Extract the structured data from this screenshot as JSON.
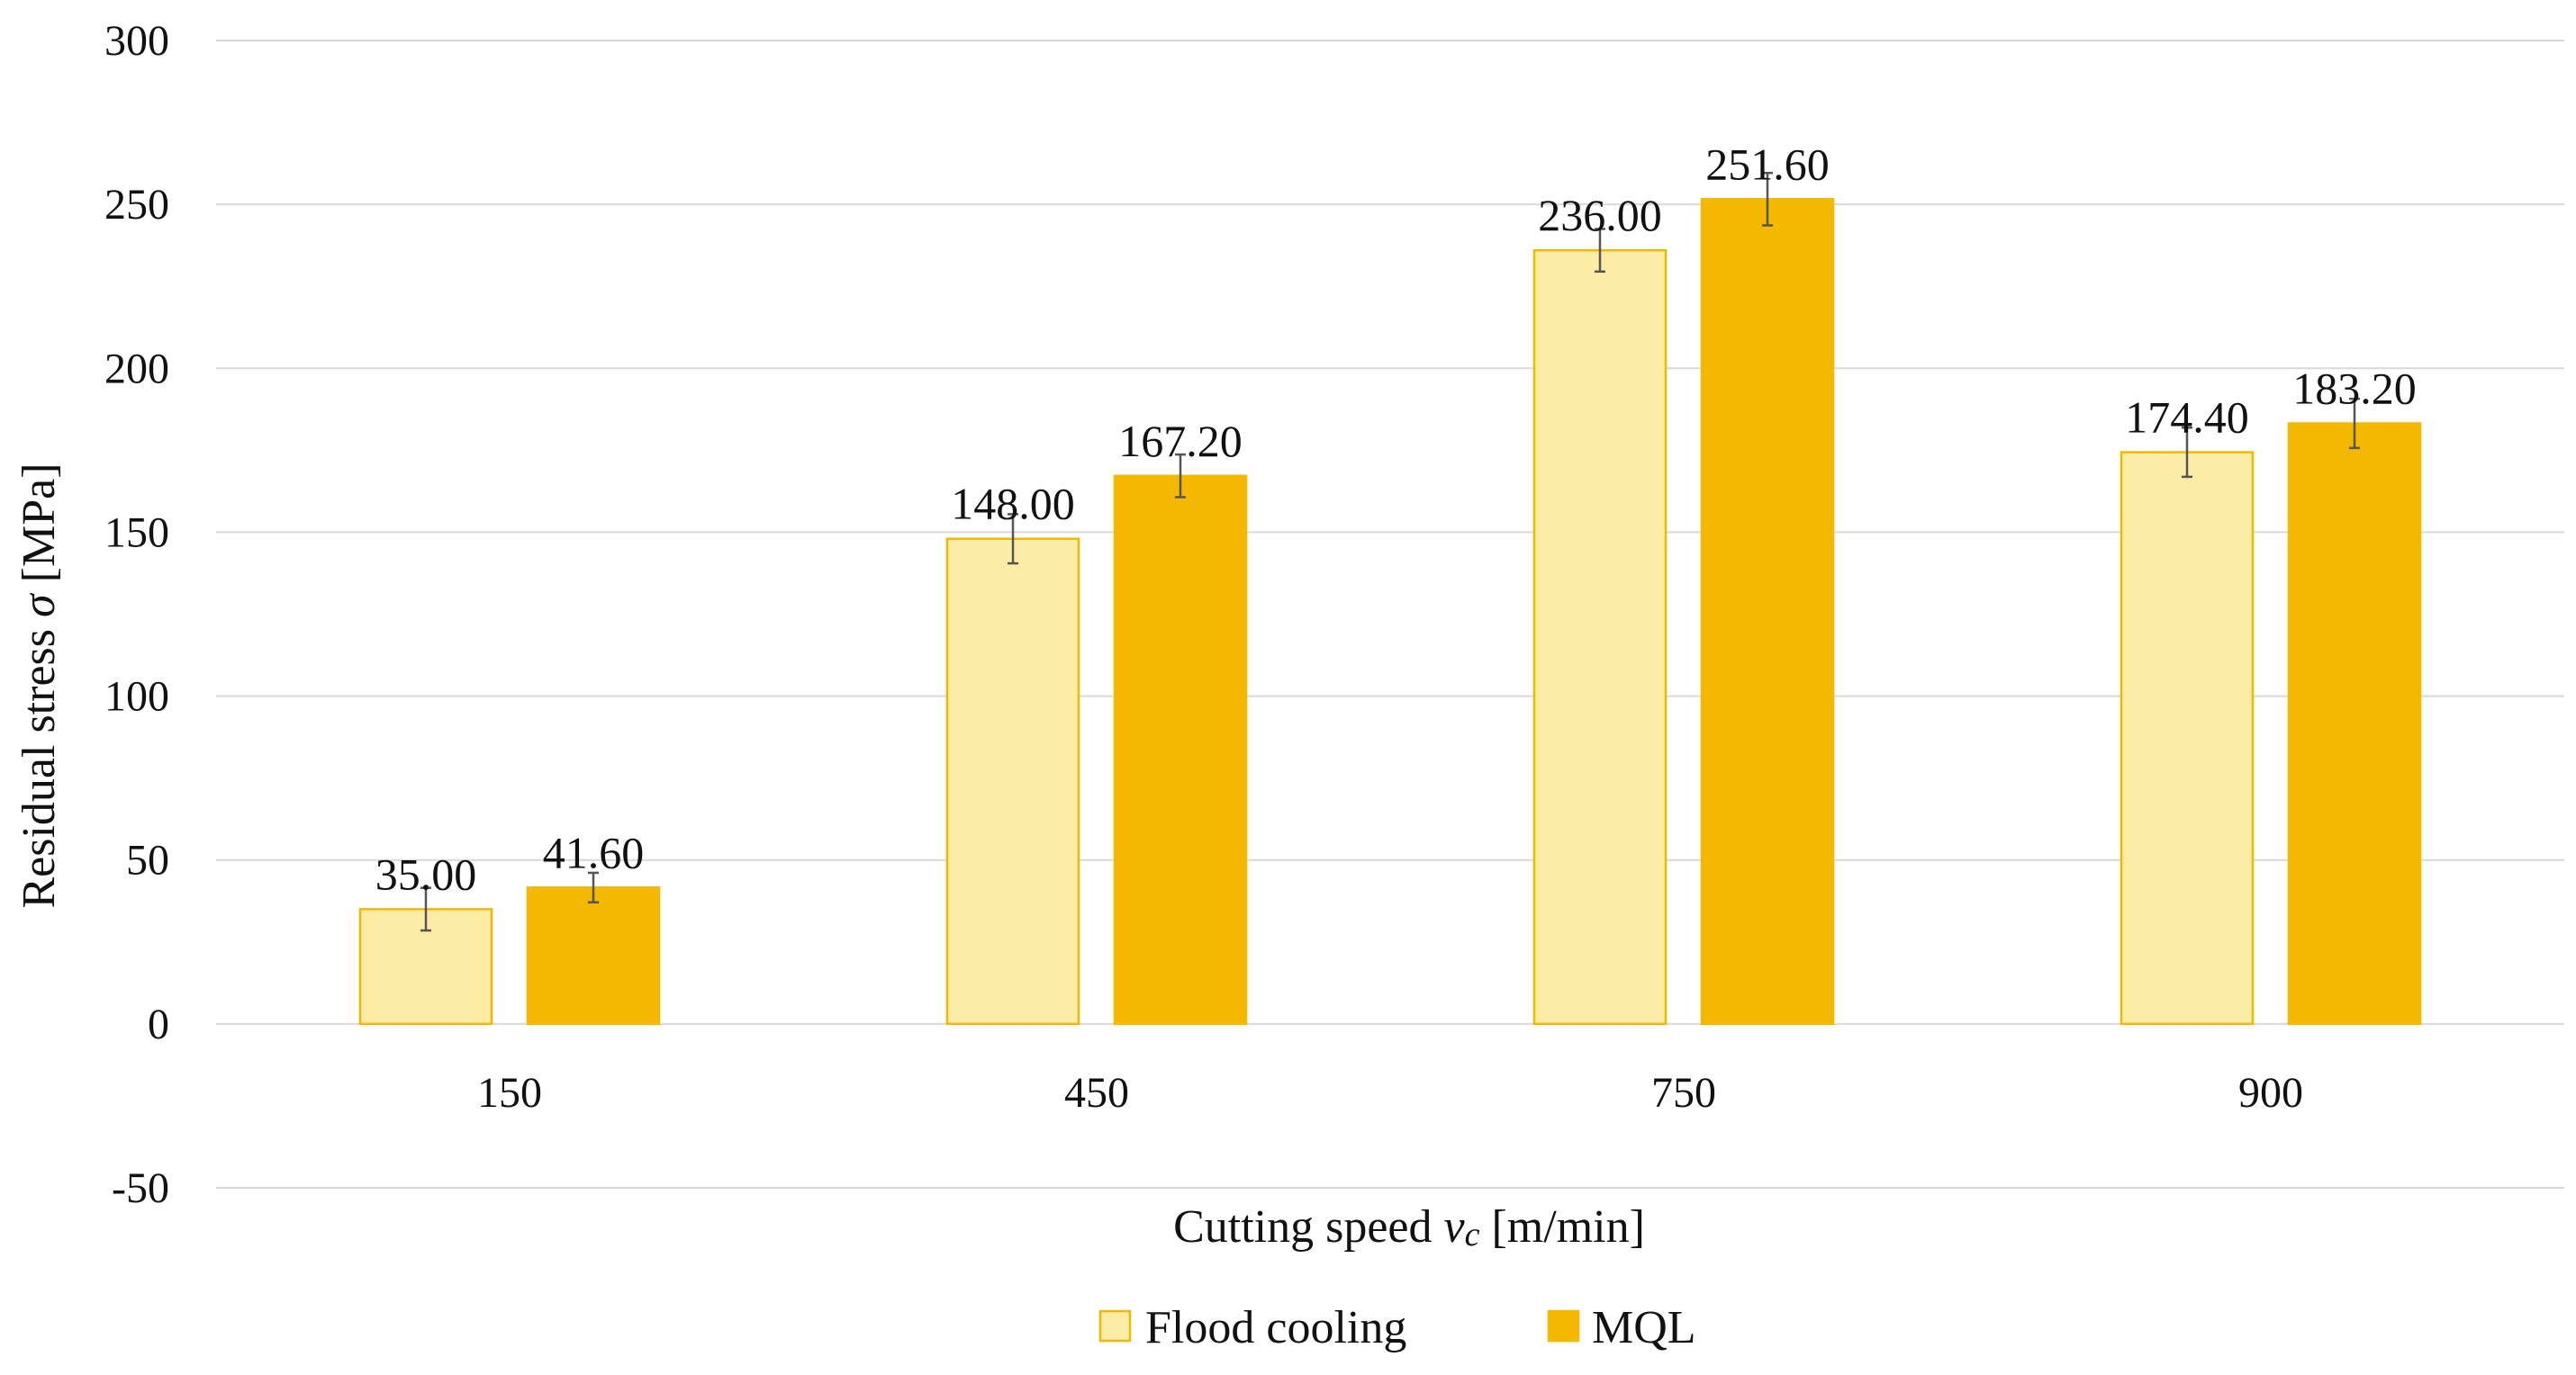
{
  "chart_data": {
    "type": "bar",
    "title": "",
    "xlabel": "Cutting speed vc [m/min]",
    "xlabel_main": "Cutting speed ",
    "xlabel_var": "v",
    "xlabel_sub": "c",
    "xlabel_unit": " [m/min]",
    "ylabel": "Residual stress σ [MPa]",
    "ylabel_main": "Residual stress ",
    "ylabel_var": "σ",
    "ylabel_unit": " [MPa]",
    "ylim": [
      -50,
      300
    ],
    "yticks": [
      -50,
      0,
      50,
      100,
      150,
      200,
      250,
      300
    ],
    "grid": true,
    "legend_position": "bottom-center",
    "categories": [
      "150",
      "450",
      "750",
      "900"
    ],
    "series": [
      {
        "name": "Flood cooling",
        "values": [
          35.0,
          148.0,
          236.0,
          174.4
        ],
        "labels": [
          "35.00",
          "148.00",
          "236.00",
          "174.40"
        ],
        "errors": [
          6.5,
          7.5,
          6.5,
          7.5
        ],
        "fill": "#fdeca6",
        "stroke": "#f2b800"
      },
      {
        "name": "MQL",
        "values": [
          41.6,
          167.2,
          251.6,
          183.2
        ],
        "labels": [
          "41.60",
          "167.20",
          "251.60",
          "183.20"
        ],
        "errors": [
          4.5,
          6.5,
          8.0,
          7.5
        ],
        "fill": "#f4b800",
        "stroke": "#f4b800"
      }
    ]
  }
}
